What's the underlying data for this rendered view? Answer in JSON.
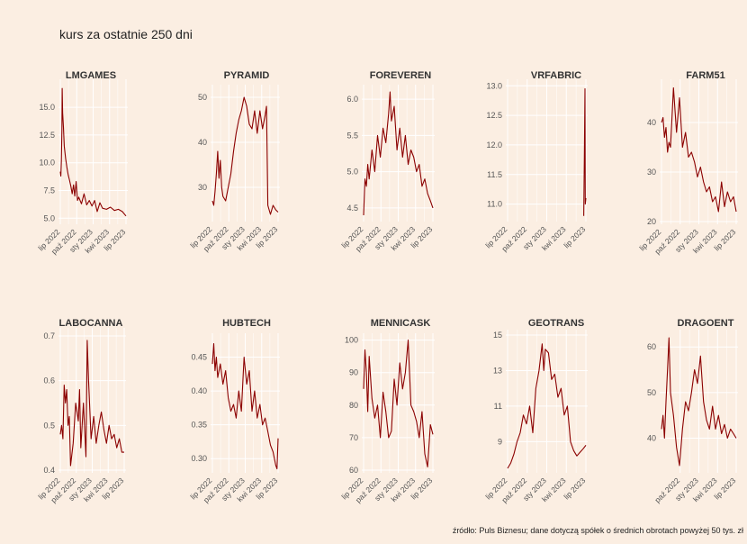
{
  "title": "kurs za ostatnie 250 dni",
  "caption": "źródło: Puls Biznesu; dane dotyczą spółek o średnich obrotach powyżej 50 tys. zł",
  "colors": {
    "background": "#fbeee2",
    "line": "#8b0000",
    "grid": "#ffffff"
  },
  "chart_data": [
    {
      "type": "line",
      "title": "LMGAMES",
      "yticks": [
        "5.0",
        "7.5",
        "10.0",
        "12.5",
        "15.0"
      ],
      "ytick_values": [
        5,
        7.5,
        10,
        12.5,
        15
      ],
      "ylim": [
        4.7,
        17.2
      ],
      "xticks": [
        "lip 2022",
        "paź 2022",
        "sty 2023",
        "kwi 2023",
        "lip 2023"
      ],
      "x": [
        0,
        2,
        4,
        6,
        7,
        9,
        12,
        15,
        20,
        25,
        30,
        35,
        40,
        45,
        50,
        55,
        60,
        65,
        70,
        80,
        90,
        100,
        110,
        120,
        130,
        140,
        150,
        160,
        175,
        190,
        205,
        220,
        235,
        249
      ],
      "values": [
        9.2,
        8.8,
        10.2,
        13.0,
        16.7,
        14.5,
        13.2,
        11.5,
        10.4,
        9.6,
        8.9,
        8.4,
        7.9,
        7.2,
        8.0,
        7.0,
        8.3,
        6.6,
        6.9,
        6.3,
        7.2,
        6.2,
        6.6,
        6.1,
        6.6,
        5.6,
        6.4,
        5.9,
        5.8,
        6.0,
        5.7,
        5.8,
        5.6,
        5.2
      ]
    },
    {
      "type": "line",
      "title": "PYRAMID",
      "yticks": [
        "30",
        "40",
        "50"
      ],
      "ytick_values": [
        30,
        40,
        50
      ],
      "ylim": [
        23,
        52
      ],
      "xticks": [
        "lip 2022",
        "paź 2022",
        "sty 2023",
        "kwi 2023",
        "lip 2023"
      ],
      "x": [
        0,
        5,
        10,
        15,
        20,
        25,
        30,
        35,
        40,
        50,
        60,
        70,
        80,
        90,
        100,
        110,
        120,
        130,
        140,
        150,
        160,
        170,
        180,
        190,
        200,
        205,
        210,
        220,
        230,
        240,
        249
      ],
      "values": [
        27,
        26,
        29,
        33,
        38,
        32,
        36,
        30,
        28,
        27,
        30,
        33,
        38,
        42,
        45,
        47,
        50,
        48,
        44,
        43,
        47,
        42,
        47,
        43,
        46,
        48,
        26,
        24,
        26,
        25,
        24.5
      ]
    },
    {
      "type": "line",
      "title": "FOREVEREN",
      "yticks": [
        "4.5",
        "5.0",
        "5.5",
        "6.0"
      ],
      "ytick_values": [
        4.5,
        5,
        5.5,
        6
      ],
      "ylim": [
        4.35,
        6.15
      ],
      "xticks": [
        "lip 2022",
        "paź 2022",
        "sty 2023",
        "kwi 2023",
        "lip 2023"
      ],
      "x": [
        0,
        5,
        10,
        15,
        20,
        30,
        40,
        50,
        60,
        70,
        80,
        90,
        95,
        100,
        110,
        120,
        130,
        140,
        150,
        160,
        170,
        180,
        190,
        200,
        210,
        220,
        230,
        240,
        249
      ],
      "values": [
        4.4,
        4.9,
        4.8,
        5.1,
        4.9,
        5.3,
        5.0,
        5.5,
        5.2,
        5.6,
        5.4,
        5.8,
        6.1,
        5.7,
        5.9,
        5.3,
        5.6,
        5.2,
        5.5,
        5.1,
        5.3,
        5.2,
        5.0,
        5.1,
        4.8,
        4.9,
        4.7,
        4.6,
        4.5
      ]
    },
    {
      "type": "line",
      "title": "VRFABRIC",
      "yticks": [
        "11.0",
        "11.5",
        "12.0",
        "12.5",
        "13.0"
      ],
      "ytick_values": [
        11,
        11.5,
        12,
        12.5,
        13
      ],
      "ylim": [
        10.75,
        13.05
      ],
      "xticks": [
        "lip 2022",
        "paź 2022",
        "sty 2023",
        "kwi 2023",
        "lip 2023"
      ],
      "x": [
        242,
        244,
        246,
        247,
        249
      ],
      "values": [
        10.8,
        11.8,
        12.95,
        11.0,
        11.1
      ]
    },
    {
      "type": "line",
      "title": "FARM51",
      "yticks": [
        "20",
        "30",
        "40"
      ],
      "ytick_values": [
        20,
        30,
        40
      ],
      "ylim": [
        20,
        48
      ],
      "xticks": [
        "lip 2022",
        "paź 2022",
        "sty 2023",
        "kwi 2023",
        "lip 2023"
      ],
      "x": [
        0,
        5,
        10,
        15,
        20,
        25,
        30,
        40,
        50,
        60,
        70,
        80,
        90,
        100,
        110,
        120,
        130,
        140,
        150,
        160,
        170,
        180,
        190,
        200,
        210,
        220,
        230,
        240,
        249
      ],
      "values": [
        40,
        41,
        37,
        39,
        34,
        36,
        35,
        47,
        38,
        45,
        35,
        38,
        33,
        34,
        32,
        29,
        31,
        28,
        26,
        27,
        24,
        25,
        22,
        28,
        23,
        26,
        24,
        25,
        22
      ]
    },
    {
      "type": "line",
      "title": "LABOCANNA",
      "yticks": [
        "0.4",
        "0.5",
        "0.6",
        "0.7"
      ],
      "ytick_values": [
        0.4,
        0.5,
        0.6,
        0.7
      ],
      "ylim": [
        0.4,
        0.71
      ],
      "xticks": [
        "lip 2022",
        "paź 2022",
        "sty 2023",
        "kwi 2023",
        "lip 2023"
      ],
      "x": [
        0,
        5,
        10,
        15,
        20,
        25,
        30,
        35,
        40,
        50,
        60,
        70,
        75,
        80,
        90,
        100,
        105,
        110,
        120,
        130,
        140,
        150,
        160,
        170,
        180,
        190,
        200,
        210,
        220,
        230,
        240,
        249
      ],
      "values": [
        0.48,
        0.5,
        0.47,
        0.59,
        0.55,
        0.58,
        0.5,
        0.52,
        0.41,
        0.46,
        0.55,
        0.51,
        0.58,
        0.45,
        0.55,
        0.43,
        0.69,
        0.6,
        0.47,
        0.52,
        0.46,
        0.5,
        0.53,
        0.49,
        0.46,
        0.5,
        0.47,
        0.48,
        0.45,
        0.47,
        0.44,
        0.44
      ]
    },
    {
      "type": "line",
      "title": "HUBTECH",
      "yticks": [
        "0.30",
        "0.35",
        "0.40",
        "0.45"
      ],
      "ytick_values": [
        0.3,
        0.35,
        0.4,
        0.45
      ],
      "ylim": [
        0.283,
        0.48
      ],
      "xticks": [
        "lip 2022",
        "paź 2022",
        "sty 2023",
        "kwi 2023",
        "lip 2023"
      ],
      "x": [
        0,
        5,
        10,
        15,
        20,
        30,
        40,
        50,
        60,
        70,
        80,
        90,
        100,
        110,
        120,
        130,
        140,
        150,
        160,
        170,
        180,
        190,
        200,
        210,
        220,
        230,
        240,
        245,
        249
      ],
      "values": [
        0.44,
        0.47,
        0.43,
        0.45,
        0.42,
        0.44,
        0.41,
        0.43,
        0.39,
        0.37,
        0.38,
        0.36,
        0.4,
        0.37,
        0.45,
        0.41,
        0.43,
        0.37,
        0.4,
        0.36,
        0.38,
        0.35,
        0.36,
        0.34,
        0.32,
        0.31,
        0.29,
        0.285,
        0.33
      ]
    },
    {
      "type": "line",
      "title": "MENNICASK",
      "yticks": [
        "60",
        "70",
        "80",
        "90",
        "100"
      ],
      "ytick_values": [
        60,
        70,
        80,
        90,
        100
      ],
      "ylim": [
        60,
        101
      ],
      "xticks": [
        "lip 2022",
        "paź 2022",
        "sty 2023",
        "kwi 2023",
        "lip 2023"
      ],
      "x": [
        0,
        5,
        10,
        15,
        20,
        30,
        40,
        50,
        60,
        70,
        80,
        90,
        100,
        110,
        120,
        130,
        140,
        150,
        160,
        170,
        180,
        190,
        200,
        210,
        220,
        230,
        240,
        249
      ],
      "values": [
        85,
        97,
        90,
        78,
        95,
        82,
        76,
        80,
        70,
        84,
        78,
        70,
        72,
        88,
        80,
        93,
        85,
        90,
        100,
        80,
        78,
        75,
        70,
        78,
        65,
        61,
        74,
        71
      ]
    },
    {
      "type": "line",
      "title": "GEOTRANS",
      "yticks": [
        "9",
        "11",
        "13",
        "15"
      ],
      "ytick_values": [
        9,
        11,
        13,
        15
      ],
      "ylim": [
        7.4,
        15.1
      ],
      "xticks": [
        "lip 2022",
        "paź 2022",
        "sty 2023",
        "kwi 2023",
        "lip 2023"
      ],
      "x": [
        0,
        10,
        20,
        30,
        40,
        50,
        60,
        70,
        80,
        90,
        100,
        110,
        115,
        120,
        130,
        140,
        150,
        160,
        170,
        180,
        190,
        200,
        210,
        220,
        230,
        240,
        249
      ],
      "values": [
        7.5,
        7.8,
        8.3,
        9.0,
        9.5,
        10.5,
        10.0,
        11.0,
        9.5,
        12.0,
        13.0,
        14.5,
        13.0,
        14.2,
        14.0,
        12.5,
        12.8,
        11.5,
        12.0,
        10.5,
        11.0,
        9.0,
        8.5,
        8.2,
        8.4,
        8.6,
        8.8
      ]
    },
    {
      "type": "line",
      "title": "DRAGOENT",
      "yticks": [
        "40",
        "50",
        "60"
      ],
      "ytick_values": [
        40,
        50,
        60
      ],
      "ylim": [
        33,
        63
      ],
      "xticks": [
        "paź 2022",
        "sty 2023",
        "kwi 2023",
        "lip 2023"
      ],
      "x": [
        0,
        5,
        10,
        15,
        20,
        25,
        30,
        40,
        50,
        60,
        70,
        80,
        90,
        100,
        110,
        120,
        130,
        140,
        150,
        160,
        170,
        180,
        190,
        200,
        210,
        220,
        230,
        240,
        249
      ],
      "values": [
        42,
        45,
        40,
        48,
        55,
        62,
        50,
        45,
        38,
        34,
        42,
        48,
        46,
        50,
        55,
        52,
        58,
        48,
        44,
        42,
        47,
        42,
        45,
        41,
        43,
        40,
        42,
        41,
        40
      ]
    }
  ]
}
